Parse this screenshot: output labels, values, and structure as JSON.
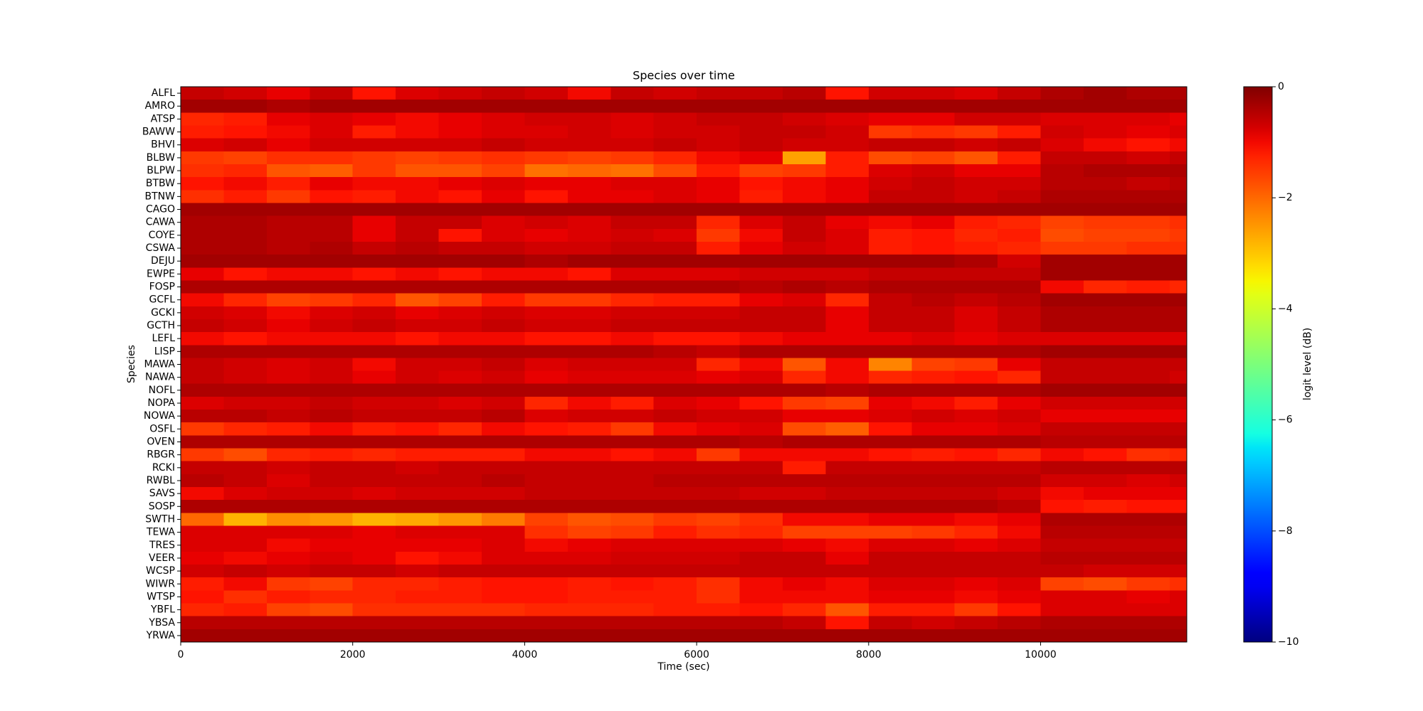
{
  "chart_data": {
    "type": "heatmap",
    "title": "Species over time",
    "x_label": "Time (sec)",
    "y_label": "Species",
    "colorbar_label": "logit level (dB)",
    "colormap": "jet",
    "clim": [
      -10,
      0
    ],
    "cticks": [
      {
        "value": -10,
        "label": "−10"
      },
      {
        "value": -8,
        "label": "−8"
      },
      {
        "value": -6,
        "label": "−6"
      },
      {
        "value": -4,
        "label": "−4"
      },
      {
        "value": -2,
        "label": "−2"
      },
      0
    ],
    "xlim": [
      0,
      11700
    ],
    "xticks": [
      0,
      2000,
      4000,
      6000,
      8000,
      10000
    ],
    "bins": [
      0,
      500,
      1000,
      1500,
      2000,
      2500,
      3000,
      3500,
      4000,
      4500,
      5000,
      5500,
      6000,
      6500,
      7000,
      7500,
      8000,
      8500,
      9000,
      9500,
      10000,
      10500,
      11000,
      11500,
      11700
    ],
    "categories": [
      "ALFL",
      "AMRO",
      "ATSP",
      "BAWW",
      "BHVI",
      "BLBW",
      "BLPW",
      "BTBW",
      "BTNW",
      "CAGO",
      "CAWA",
      "COYE",
      "CSWA",
      "DEJU",
      "EWPE",
      "FOSP",
      "GCFL",
      "GCKI",
      "GCTH",
      "LEFL",
      "LISP",
      "MAWA",
      "NAWA",
      "NOFL",
      "NOPA",
      "NOWA",
      "OSFL",
      "OVEN",
      "RBGR",
      "RCKI",
      "RWBL",
      "SAVS",
      "SOSP",
      "SWTH",
      "TEWA",
      "TRES",
      "VEER",
      "WCSP",
      "WIWR",
      "WTSP",
      "YBFL",
      "YBSA",
      "YRWA"
    ],
    "values": [
      [
        -0.6,
        -0.7,
        -0.9,
        -0.6,
        -1.1,
        -0.8,
        -0.7,
        -0.6,
        -0.7,
        -1.0,
        -0.6,
        -0.7,
        -0.6,
        -0.6,
        -0.5,
        -1.1,
        -0.7,
        -0.7,
        -0.8,
        -0.6,
        -0.4,
        -0.3,
        -0.4,
        -0.4
      ],
      [
        -0.3,
        -0.3,
        -0.4,
        -0.3,
        -0.3,
        -0.3,
        -0.3,
        -0.3,
        -0.3,
        -0.3,
        -0.3,
        -0.3,
        -0.3,
        -0.3,
        -0.3,
        -0.3,
        -0.3,
        -0.3,
        -0.3,
        -0.3,
        -0.3,
        -0.3,
        -0.3,
        -0.3
      ],
      [
        -1.3,
        -1.2,
        -0.9,
        -0.8,
        -0.9,
        -1.0,
        -0.9,
        -0.8,
        -0.7,
        -0.7,
        -0.8,
        -0.7,
        -0.6,
        -0.6,
        -0.7,
        -0.8,
        -0.9,
        -0.9,
        -0.7,
        -0.7,
        -0.8,
        -0.8,
        -0.8,
        -0.9
      ],
      [
        -1.2,
        -1.1,
        -1.0,
        -0.8,
        -1.2,
        -1.0,
        -0.9,
        -0.8,
        -0.8,
        -0.7,
        -0.8,
        -0.7,
        -0.7,
        -0.6,
        -0.6,
        -0.7,
        -1.5,
        -1.4,
        -1.5,
        -1.2,
        -0.7,
        -0.8,
        -0.9,
        -0.8
      ],
      [
        -0.8,
        -0.7,
        -0.9,
        -0.7,
        -0.7,
        -0.7,
        -0.7,
        -0.6,
        -0.7,
        -0.7,
        -0.7,
        -0.6,
        -0.7,
        -0.6,
        -0.7,
        -0.7,
        -0.6,
        -0.6,
        -0.7,
        -0.6,
        -0.8,
        -1.0,
        -1.1,
        -1.0
      ],
      [
        -1.5,
        -1.6,
        -1.4,
        -1.4,
        -1.5,
        -1.6,
        -1.5,
        -1.4,
        -1.5,
        -1.6,
        -1.5,
        -1.3,
        -1.0,
        -0.9,
        -2.6,
        -1.2,
        -1.7,
        -1.6,
        -1.8,
        -1.2,
        -0.6,
        -0.6,
        -0.7,
        -0.6
      ],
      [
        -1.4,
        -1.3,
        -1.8,
        -1.9,
        -1.5,
        -1.8,
        -1.8,
        -1.6,
        -2.1,
        -2.0,
        -2.1,
        -1.7,
        -1.2,
        -1.6,
        -1.5,
        -1.2,
        -0.8,
        -0.7,
        -0.9,
        -0.9,
        -0.5,
        -0.4,
        -0.4,
        -0.4
      ],
      [
        -1.1,
        -1.0,
        -1.2,
        -0.9,
        -1.0,
        -1.0,
        -0.9,
        -0.8,
        -0.9,
        -0.9,
        -0.8,
        -0.8,
        -0.9,
        -1.1,
        -1.0,
        -0.9,
        -0.7,
        -0.6,
        -0.7,
        -0.7,
        -0.5,
        -0.5,
        -0.6,
        -0.5
      ],
      [
        -1.4,
        -1.2,
        -1.5,
        -1.1,
        -1.2,
        -1.0,
        -1.1,
        -0.9,
        -1.1,
        -0.9,
        -0.9,
        -0.8,
        -0.9,
        -1.2,
        -1.0,
        -0.9,
        -0.6,
        -0.6,
        -0.7,
        -0.6,
        -0.4,
        -0.4,
        -0.4,
        -0.4
      ],
      [
        -0.3,
        -0.3,
        -0.3,
        -0.3,
        -0.3,
        -0.3,
        -0.3,
        -0.3,
        -0.3,
        -0.3,
        -0.3,
        -0.3,
        -0.3,
        -0.3,
        -0.3,
        -0.3,
        -0.3,
        -0.3,
        -0.3,
        -0.3,
        -0.3,
        -0.3,
        -0.3,
        -0.3
      ],
      [
        -0.4,
        -0.4,
        -0.5,
        -0.5,
        -0.9,
        -0.6,
        -0.6,
        -0.8,
        -0.7,
        -0.8,
        -0.6,
        -0.6,
        -1.3,
        -0.8,
        -0.6,
        -0.9,
        -1.0,
        -0.9,
        -1.2,
        -1.3,
        -1.6,
        -1.5,
        -1.5,
        -1.4
      ],
      [
        -0.4,
        -0.4,
        -0.5,
        -0.5,
        -0.9,
        -0.6,
        -1.1,
        -0.8,
        -0.9,
        -0.8,
        -0.7,
        -0.8,
        -1.5,
        -1.0,
        -0.6,
        -0.8,
        -1.2,
        -1.1,
        -1.3,
        -1.2,
        -1.7,
        -1.6,
        -1.6,
        -1.5
      ],
      [
        -0.4,
        -0.4,
        -0.5,
        -0.4,
        -0.6,
        -0.5,
        -0.6,
        -0.6,
        -0.7,
        -0.7,
        -0.6,
        -0.6,
        -1.2,
        -0.9,
        -0.7,
        -0.8,
        -1.2,
        -1.1,
        -1.2,
        -1.3,
        -1.5,
        -1.5,
        -1.4,
        -1.4
      ],
      [
        -0.3,
        -0.3,
        -0.3,
        -0.3,
        -0.3,
        -0.3,
        -0.3,
        -0.3,
        -0.4,
        -0.3,
        -0.3,
        -0.3,
        -0.3,
        -0.3,
        -0.3,
        -0.3,
        -0.3,
        -0.3,
        -0.4,
        -0.7,
        -0.3,
        -0.3,
        -0.3,
        -0.3
      ],
      [
        -0.9,
        -1.1,
        -1.0,
        -1.0,
        -1.1,
        -1.0,
        -1.1,
        -1.0,
        -1.0,
        -1.1,
        -0.8,
        -0.8,
        -0.8,
        -0.7,
        -0.7,
        -0.7,
        -0.6,
        -0.6,
        -0.6,
        -0.6,
        -0.3,
        -0.3,
        -0.3,
        -0.3
      ],
      [
        -0.4,
        -0.4,
        -0.4,
        -0.4,
        -0.4,
        -0.4,
        -0.4,
        -0.4,
        -0.4,
        -0.4,
        -0.4,
        -0.4,
        -0.4,
        -0.5,
        -0.4,
        -0.5,
        -0.4,
        -0.4,
        -0.4,
        -0.4,
        -1.0,
        -1.3,
        -1.2,
        -1.3
      ],
      [
        -1.0,
        -1.3,
        -1.6,
        -1.5,
        -1.3,
        -1.8,
        -1.6,
        -1.2,
        -1.5,
        -1.5,
        -1.3,
        -1.2,
        -1.2,
        -0.9,
        -0.8,
        -1.3,
        -0.6,
        -0.5,
        -0.6,
        -0.5,
        -0.3,
        -0.3,
        -0.3,
        -0.3
      ],
      [
        -0.7,
        -0.8,
        -1.0,
        -0.8,
        -0.7,
        -0.9,
        -0.8,
        -0.7,
        -0.8,
        -0.8,
        -0.7,
        -0.7,
        -0.7,
        -0.6,
        -0.6,
        -0.9,
        -0.6,
        -0.6,
        -0.8,
        -0.6,
        -0.4,
        -0.4,
        -0.4,
        -0.4
      ],
      [
        -0.6,
        -0.7,
        -0.9,
        -0.7,
        -0.6,
        -0.7,
        -0.7,
        -0.6,
        -0.7,
        -0.7,
        -0.6,
        -0.6,
        -0.6,
        -0.6,
        -0.6,
        -0.9,
        -0.6,
        -0.6,
        -0.8,
        -0.6,
        -0.4,
        -0.4,
        -0.4,
        -0.4
      ],
      [
        -1.0,
        -1.1,
        -1.0,
        -1.0,
        -1.0,
        -1.1,
        -1.0,
        -1.0,
        -1.1,
        -1.1,
        -1.0,
        -1.1,
        -1.1,
        -1.0,
        -0.9,
        -0.9,
        -0.9,
        -0.8,
        -0.9,
        -0.8,
        -0.8,
        -0.8,
        -0.8,
        -0.8
      ],
      [
        -0.4,
        -0.4,
        -0.4,
        -0.4,
        -0.4,
        -0.4,
        -0.4,
        -0.4,
        -0.4,
        -0.4,
        -0.4,
        -0.5,
        -0.6,
        -0.4,
        -0.4,
        -0.4,
        -0.4,
        -0.4,
        -0.4,
        -0.4,
        -0.3,
        -0.3,
        -0.3,
        -0.3
      ],
      [
        -0.6,
        -0.7,
        -0.8,
        -0.7,
        -1.0,
        -0.7,
        -0.7,
        -0.6,
        -0.8,
        -0.7,
        -0.7,
        -0.7,
        -1.3,
        -1.0,
        -1.8,
        -1.0,
        -2.3,
        -1.6,
        -1.5,
        -0.9,
        -0.6,
        -0.6,
        -0.6,
        -0.6
      ],
      [
        -0.6,
        -0.7,
        -0.8,
        -0.7,
        -0.9,
        -0.7,
        -0.8,
        -0.7,
        -0.9,
        -0.8,
        -0.8,
        -0.8,
        -0.9,
        -0.8,
        -1.3,
        -1.0,
        -1.3,
        -1.2,
        -1.1,
        -1.3,
        -0.6,
        -0.6,
        -0.6,
        -0.7
      ],
      [
        -0.4,
        -0.4,
        -0.4,
        -0.4,
        -0.4,
        -0.4,
        -0.4,
        -0.4,
        -0.4,
        -0.4,
        -0.4,
        -0.4,
        -0.4,
        -0.4,
        -0.4,
        -0.5,
        -0.4,
        -0.4,
        -0.4,
        -0.4,
        -0.3,
        -0.3,
        -0.3,
        -0.3
      ],
      [
        -0.8,
        -0.7,
        -0.7,
        -0.6,
        -0.7,
        -0.7,
        -0.8,
        -0.7,
        -1.3,
        -1.0,
        -1.2,
        -0.8,
        -0.9,
        -1.1,
        -1.5,
        -1.6,
        -0.9,
        -1.0,
        -1.2,
        -0.9,
        -0.7,
        -0.7,
        -0.7,
        -0.7
      ],
      [
        -0.5,
        -0.5,
        -0.6,
        -0.5,
        -0.6,
        -0.6,
        -0.6,
        -0.5,
        -0.8,
        -0.7,
        -0.7,
        -0.6,
        -0.7,
        -0.7,
        -0.9,
        -0.9,
        -0.8,
        -0.7,
        -0.8,
        -0.7,
        -0.9,
        -0.9,
        -0.9,
        -0.9
      ],
      [
        -1.5,
        -1.3,
        -1.2,
        -1.0,
        -1.2,
        -1.1,
        -1.3,
        -1.0,
        -1.1,
        -1.2,
        -1.5,
        -1.0,
        -0.9,
        -0.8,
        -1.7,
        -1.9,
        -1.1,
        -0.9,
        -0.9,
        -0.8,
        -0.6,
        -0.6,
        -0.6,
        -0.6
      ],
      [
        -0.4,
        -0.4,
        -0.4,
        -0.4,
        -0.4,
        -0.4,
        -0.4,
        -0.4,
        -0.4,
        -0.4,
        -0.4,
        -0.4,
        -0.4,
        -0.5,
        -0.4,
        -0.4,
        -0.4,
        -0.4,
        -0.4,
        -0.4,
        -0.5,
        -0.5,
        -0.5,
        -0.5
      ],
      [
        -1.5,
        -1.7,
        -1.3,
        -1.2,
        -1.3,
        -1.2,
        -1.2,
        -1.2,
        -1.0,
        -1.0,
        -1.1,
        -1.0,
        -1.5,
        -1.0,
        -1.0,
        -1.0,
        -1.1,
        -1.2,
        -1.1,
        -1.3,
        -1.0,
        -1.1,
        -1.4,
        -1.3
      ],
      [
        -0.6,
        -0.6,
        -0.7,
        -0.6,
        -0.6,
        -0.7,
        -0.6,
        -0.6,
        -0.6,
        -0.6,
        -0.6,
        -0.6,
        -0.6,
        -0.6,
        -1.2,
        -0.6,
        -0.6,
        -0.6,
        -0.6,
        -0.6,
        -0.5,
        -0.5,
        -0.5,
        -0.5
      ],
      [
        -0.5,
        -0.6,
        -0.8,
        -0.6,
        -0.6,
        -0.6,
        -0.6,
        -0.5,
        -0.6,
        -0.6,
        -0.6,
        -0.5,
        -0.5,
        -0.5,
        -0.5,
        -0.5,
        -0.5,
        -0.5,
        -0.5,
        -0.5,
        -0.7,
        -0.7,
        -0.8,
        -0.7
      ],
      [
        -1.0,
        -0.8,
        -0.7,
        -0.7,
        -0.8,
        -0.7,
        -0.7,
        -0.7,
        -0.6,
        -0.6,
        -0.6,
        -0.6,
        -0.6,
        -0.7,
        -0.7,
        -0.6,
        -0.6,
        -0.6,
        -0.6,
        -0.7,
        -1.0,
        -0.9,
        -0.9,
        -0.9
      ],
      [
        -0.4,
        -0.4,
        -0.4,
        -0.4,
        -0.4,
        -0.4,
        -0.4,
        -0.4,
        -0.4,
        -0.4,
        -0.4,
        -0.4,
        -0.4,
        -0.4,
        -0.4,
        -0.4,
        -0.4,
        -0.4,
        -0.4,
        -0.5,
        -1.1,
        -1.2,
        -1.1,
        -1.1
      ],
      [
        -2.0,
        -2.8,
        -2.4,
        -2.5,
        -2.8,
        -2.7,
        -2.5,
        -2.2,
        -1.6,
        -1.8,
        -1.7,
        -1.5,
        -1.6,
        -1.4,
        -1.0,
        -1.0,
        -0.9,
        -0.9,
        -1.0,
        -0.9,
        -0.4,
        -0.4,
        -0.4,
        -0.4
      ],
      [
        -0.8,
        -0.8,
        -0.8,
        -0.8,
        -0.9,
        -0.8,
        -0.8,
        -0.8,
        -1.4,
        -1.6,
        -1.5,
        -1.2,
        -1.4,
        -1.3,
        -1.6,
        -1.6,
        -1.6,
        -1.5,
        -1.3,
        -1.0,
        -0.5,
        -0.5,
        -0.5,
        -0.5
      ],
      [
        -0.8,
        -0.8,
        -1.0,
        -0.9,
        -0.9,
        -0.9,
        -0.9,
        -0.8,
        -1.0,
        -0.9,
        -0.8,
        -0.8,
        -0.8,
        -0.8,
        -0.9,
        -1.0,
        -0.8,
        -0.8,
        -0.9,
        -0.8,
        -0.6,
        -0.6,
        -0.6,
        -0.6
      ],
      [
        -0.9,
        -1.0,
        -0.9,
        -0.8,
        -0.9,
        -1.1,
        -1.0,
        -0.8,
        -0.8,
        -0.8,
        -0.7,
        -0.7,
        -0.7,
        -0.6,
        -0.6,
        -0.9,
        -0.6,
        -0.6,
        -0.6,
        -0.6,
        -0.5,
        -0.5,
        -0.5,
        -0.5
      ],
      [
        -0.7,
        -0.6,
        -0.7,
        -0.6,
        -0.6,
        -0.7,
        -0.6,
        -0.6,
        -0.6,
        -0.6,
        -0.6,
        -0.6,
        -0.6,
        -0.6,
        -0.6,
        -0.6,
        -0.6,
        -0.6,
        -0.6,
        -0.6,
        -0.6,
        -0.7,
        -0.7,
        -0.7
      ],
      [
        -1.2,
        -1.0,
        -1.5,
        -1.6,
        -1.3,
        -1.3,
        -1.2,
        -1.1,
        -1.1,
        -1.2,
        -1.1,
        -1.2,
        -1.4,
        -1.0,
        -0.9,
        -1.0,
        -0.8,
        -0.8,
        -0.9,
        -0.8,
        -1.6,
        -1.7,
        -1.5,
        -1.4
      ],
      [
        -1.1,
        -1.4,
        -1.2,
        -1.3,
        -1.3,
        -1.2,
        -1.2,
        -1.1,
        -1.1,
        -1.2,
        -1.2,
        -1.2,
        -1.4,
        -1.0,
        -1.0,
        -1.0,
        -0.9,
        -0.9,
        -1.0,
        -0.9,
        -0.8,
        -0.8,
        -0.9,
        -0.8
      ],
      [
        -1.3,
        -1.2,
        -1.6,
        -1.7,
        -1.4,
        -1.4,
        -1.4,
        -1.4,
        -1.3,
        -1.3,
        -1.3,
        -1.2,
        -1.2,
        -1.1,
        -1.3,
        -1.8,
        -1.2,
        -1.2,
        -1.5,
        -1.1,
        -0.8,
        -0.8,
        -0.8,
        -0.8
      ],
      [
        -0.5,
        -0.5,
        -0.5,
        -0.5,
        -0.5,
        -0.5,
        -0.5,
        -0.5,
        -0.5,
        -0.5,
        -0.5,
        -0.5,
        -0.5,
        -0.5,
        -0.6,
        -1.1,
        -0.6,
        -0.7,
        -0.6,
        -0.5,
        -0.4,
        -0.4,
        -0.4,
        -0.4
      ],
      [
        -0.3,
        -0.3,
        -0.3,
        -0.3,
        -0.3,
        -0.3,
        -0.3,
        -0.3,
        -0.3,
        -0.3,
        -0.3,
        -0.3,
        -0.3,
        -0.3,
        -0.3,
        -0.3,
        -0.3,
        -0.3,
        -0.3,
        -0.3,
        -0.3,
        -0.3,
        -0.3,
        -0.3
      ]
    ]
  }
}
